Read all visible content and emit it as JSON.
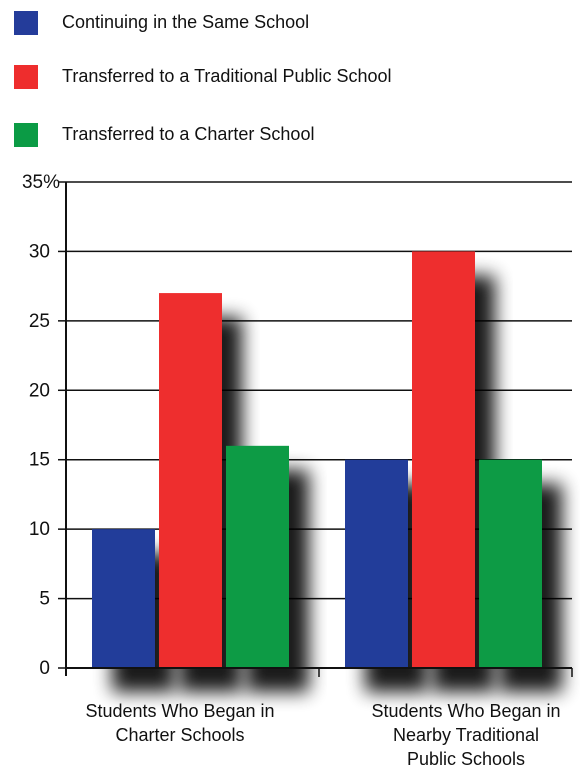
{
  "chart_data": {
    "type": "bar",
    "title": "",
    "xlabel": "",
    "ylabel": "",
    "ylim": [
      0,
      35
    ],
    "y_ticks": [
      "0",
      "5",
      "10",
      "15",
      "20",
      "25",
      "30",
      "35%"
    ],
    "y_tick_values": [
      0,
      5,
      10,
      15,
      20,
      25,
      30,
      35
    ],
    "categories": [
      [
        "Students Who Began in",
        "Charter Schools"
      ],
      [
        "Students Who Began in",
        "Nearby Traditional",
        "Public Schools"
      ]
    ],
    "series": [
      {
        "name": "Continuing in the Same School",
        "color": "#243c9a",
        "values": [
          10,
          15
        ]
      },
      {
        "name": "Transferred to a Traditional Public School",
        "color": "#ee2d2d",
        "values": [
          27,
          30
        ]
      },
      {
        "name": "Transferred to a Charter School",
        "color": "#0b9b45",
        "values": [
          16,
          15
        ]
      }
    ],
    "grid": true,
    "legend_position": "top-left",
    "bar_shadow": true
  }
}
